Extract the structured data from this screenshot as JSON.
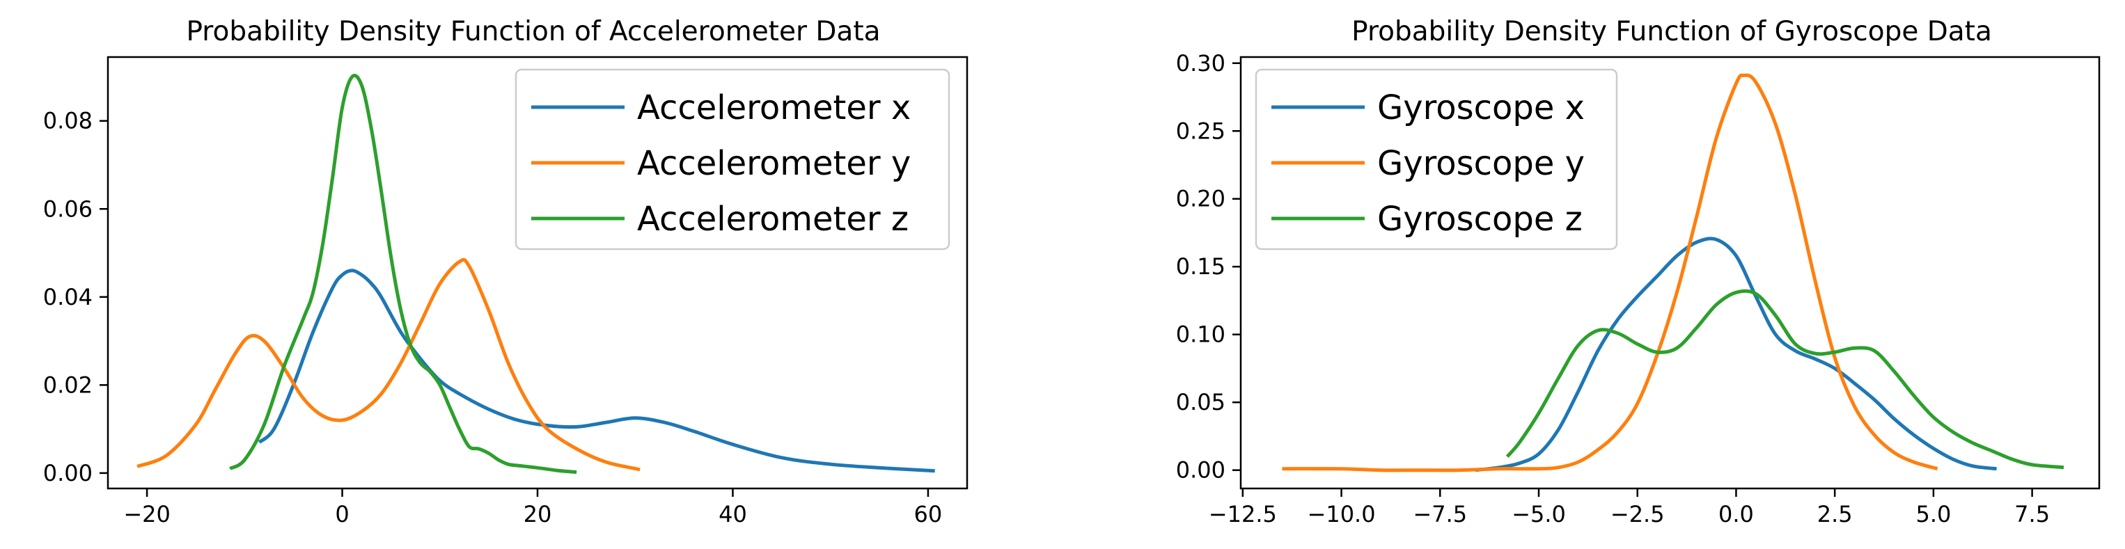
{
  "chart_data": [
    {
      "type": "line",
      "title": "Probability Density Function of Accelerometer Data",
      "xlabel": "",
      "ylabel": "",
      "xlim": [
        -24,
        64
      ],
      "ylim": [
        -0.0035,
        0.0945
      ],
      "xticks": [
        -20,
        0,
        20,
        40,
        60
      ],
      "xtick_labels": [
        "−20",
        "0",
        "20",
        "40",
        "60"
      ],
      "yticks": [
        0.0,
        0.02,
        0.04,
        0.06,
        0.08
      ],
      "ytick_labels": [
        "0.00",
        "0.02",
        "0.04",
        "0.06",
        "0.08"
      ],
      "grid": false,
      "legend_position": "top-right",
      "series": [
        {
          "name": "Accelerometer x",
          "color": "#1f77b4",
          "x": [
            -8.5,
            -7,
            -5,
            -3,
            -1,
            0,
            1,
            2,
            3,
            4,
            6,
            8,
            10,
            12,
            15,
            18,
            21,
            24,
            27,
            30,
            33,
            36,
            40,
            45,
            50,
            55,
            60.7
          ],
          "y": [
            0.007,
            0.01,
            0.02,
            0.032,
            0.042,
            0.045,
            0.046,
            0.045,
            0.043,
            0.04,
            0.032,
            0.026,
            0.021,
            0.018,
            0.0145,
            0.012,
            0.0108,
            0.0105,
            0.0115,
            0.0125,
            0.0115,
            0.0095,
            0.0065,
            0.0035,
            0.002,
            0.0012,
            0.0005
          ]
        },
        {
          "name": "Accelerometer y",
          "color": "#ff7f0e",
          "x": [
            -21,
            -18,
            -15,
            -13,
            -11,
            -9.5,
            -8,
            -6,
            -4,
            -2,
            0,
            2,
            4,
            6,
            8,
            10,
            12,
            13,
            15,
            17,
            19,
            21,
            24,
            27,
            30.5
          ],
          "y": [
            0.0015,
            0.004,
            0.011,
            0.019,
            0.027,
            0.031,
            0.03,
            0.024,
            0.017,
            0.013,
            0.012,
            0.014,
            0.018,
            0.025,
            0.034,
            0.043,
            0.048,
            0.047,
            0.037,
            0.025,
            0.016,
            0.01,
            0.0055,
            0.0025,
            0.0008
          ]
        },
        {
          "name": "Accelerometer z",
          "color": "#2ca02c",
          "x": [
            -11.5,
            -10,
            -8,
            -6,
            -4,
            -3,
            -2,
            -1,
            0,
            1,
            2,
            3,
            4,
            5,
            6,
            7,
            8,
            9,
            10,
            11,
            12,
            13,
            14,
            15,
            16,
            17,
            18,
            20,
            22,
            24
          ],
          "y": [
            0.001,
            0.003,
            0.011,
            0.024,
            0.035,
            0.041,
            0.052,
            0.067,
            0.083,
            0.09,
            0.088,
            0.078,
            0.064,
            0.049,
            0.037,
            0.029,
            0.025,
            0.023,
            0.02,
            0.015,
            0.01,
            0.006,
            0.0055,
            0.0045,
            0.003,
            0.002,
            0.0017,
            0.0012,
            0.0006,
            0.0002
          ]
        }
      ]
    },
    {
      "type": "line",
      "title": "Probability Density Function of Gyroscope Data",
      "xlabel": "",
      "ylabel": "",
      "xlim": [
        -12.55,
        9.2
      ],
      "ylim": [
        -0.0135,
        0.3045
      ],
      "xticks": [
        -12.5,
        -10,
        -7.5,
        -5,
        -2.5,
        0,
        2.5,
        5,
        7.5
      ],
      "xtick_labels": [
        "−12.5",
        "−10.0",
        "−7.5",
        "−5.0",
        "−2.5",
        "0.0",
        "2.5",
        "5.0",
        "7.5"
      ],
      "yticks": [
        0.0,
        0.05,
        0.1,
        0.15,
        0.2,
        0.25,
        0.3
      ],
      "ytick_labels": [
        "0.00",
        "0.05",
        "0.10",
        "0.15",
        "0.20",
        "0.25",
        "0.30"
      ],
      "grid": false,
      "legend_position": "top-left",
      "series": [
        {
          "name": "Gyroscope x",
          "color": "#1f77b4",
          "x": [
            -6.6,
            -6,
            -5.5,
            -5,
            -4.5,
            -4,
            -3.5,
            -3,
            -2.5,
            -2,
            -1.5,
            -1,
            -0.5,
            0,
            0.5,
            1,
            1.5,
            2,
            2.5,
            3,
            3.5,
            4,
            4.5,
            5,
            5.5,
            6,
            6.6
          ],
          "y": [
            0.0,
            0.002,
            0.005,
            0.012,
            0.03,
            0.058,
            0.088,
            0.111,
            0.128,
            0.143,
            0.158,
            0.168,
            0.17,
            0.158,
            0.128,
            0.1,
            0.088,
            0.082,
            0.075,
            0.064,
            0.052,
            0.038,
            0.026,
            0.016,
            0.008,
            0.003,
            0.001
          ]
        },
        {
          "name": "Gyroscope y",
          "color": "#ff7f0e",
          "x": [
            -11.5,
            -10,
            -9,
            -8,
            -7,
            -6,
            -5,
            -4.5,
            -4,
            -3.5,
            -3,
            -2.5,
            -2,
            -1.5,
            -1,
            -0.5,
            0,
            0.2,
            0.5,
            1,
            1.5,
            2,
            2.5,
            3,
            3.5,
            4,
            4.5,
            5.1
          ],
          "y": [
            0.001,
            0.001,
            0.0,
            0.0,
            0.0,
            0.001,
            0.001,
            0.002,
            0.006,
            0.015,
            0.028,
            0.049,
            0.085,
            0.131,
            0.187,
            0.245,
            0.285,
            0.291,
            0.286,
            0.255,
            0.203,
            0.14,
            0.083,
            0.047,
            0.026,
            0.013,
            0.006,
            0.001
          ]
        },
        {
          "name": "Gyroscope z",
          "color": "#2ca02c",
          "x": [
            -5.8,
            -5.5,
            -5,
            -4.5,
            -4,
            -3.5,
            -3,
            -2.5,
            -2,
            -1.5,
            -1,
            -0.5,
            0,
            0.5,
            1,
            1.5,
            2,
            2.5,
            3,
            3.5,
            4,
            4.5,
            5,
            5.5,
            6,
            6.5,
            7,
            7.5,
            8.3
          ],
          "y": [
            0.01,
            0.02,
            0.042,
            0.068,
            0.092,
            0.103,
            0.101,
            0.093,
            0.087,
            0.09,
            0.105,
            0.122,
            0.131,
            0.13,
            0.114,
            0.093,
            0.086,
            0.087,
            0.09,
            0.088,
            0.073,
            0.055,
            0.039,
            0.028,
            0.02,
            0.014,
            0.008,
            0.004,
            0.002
          ]
        }
      ]
    }
  ]
}
